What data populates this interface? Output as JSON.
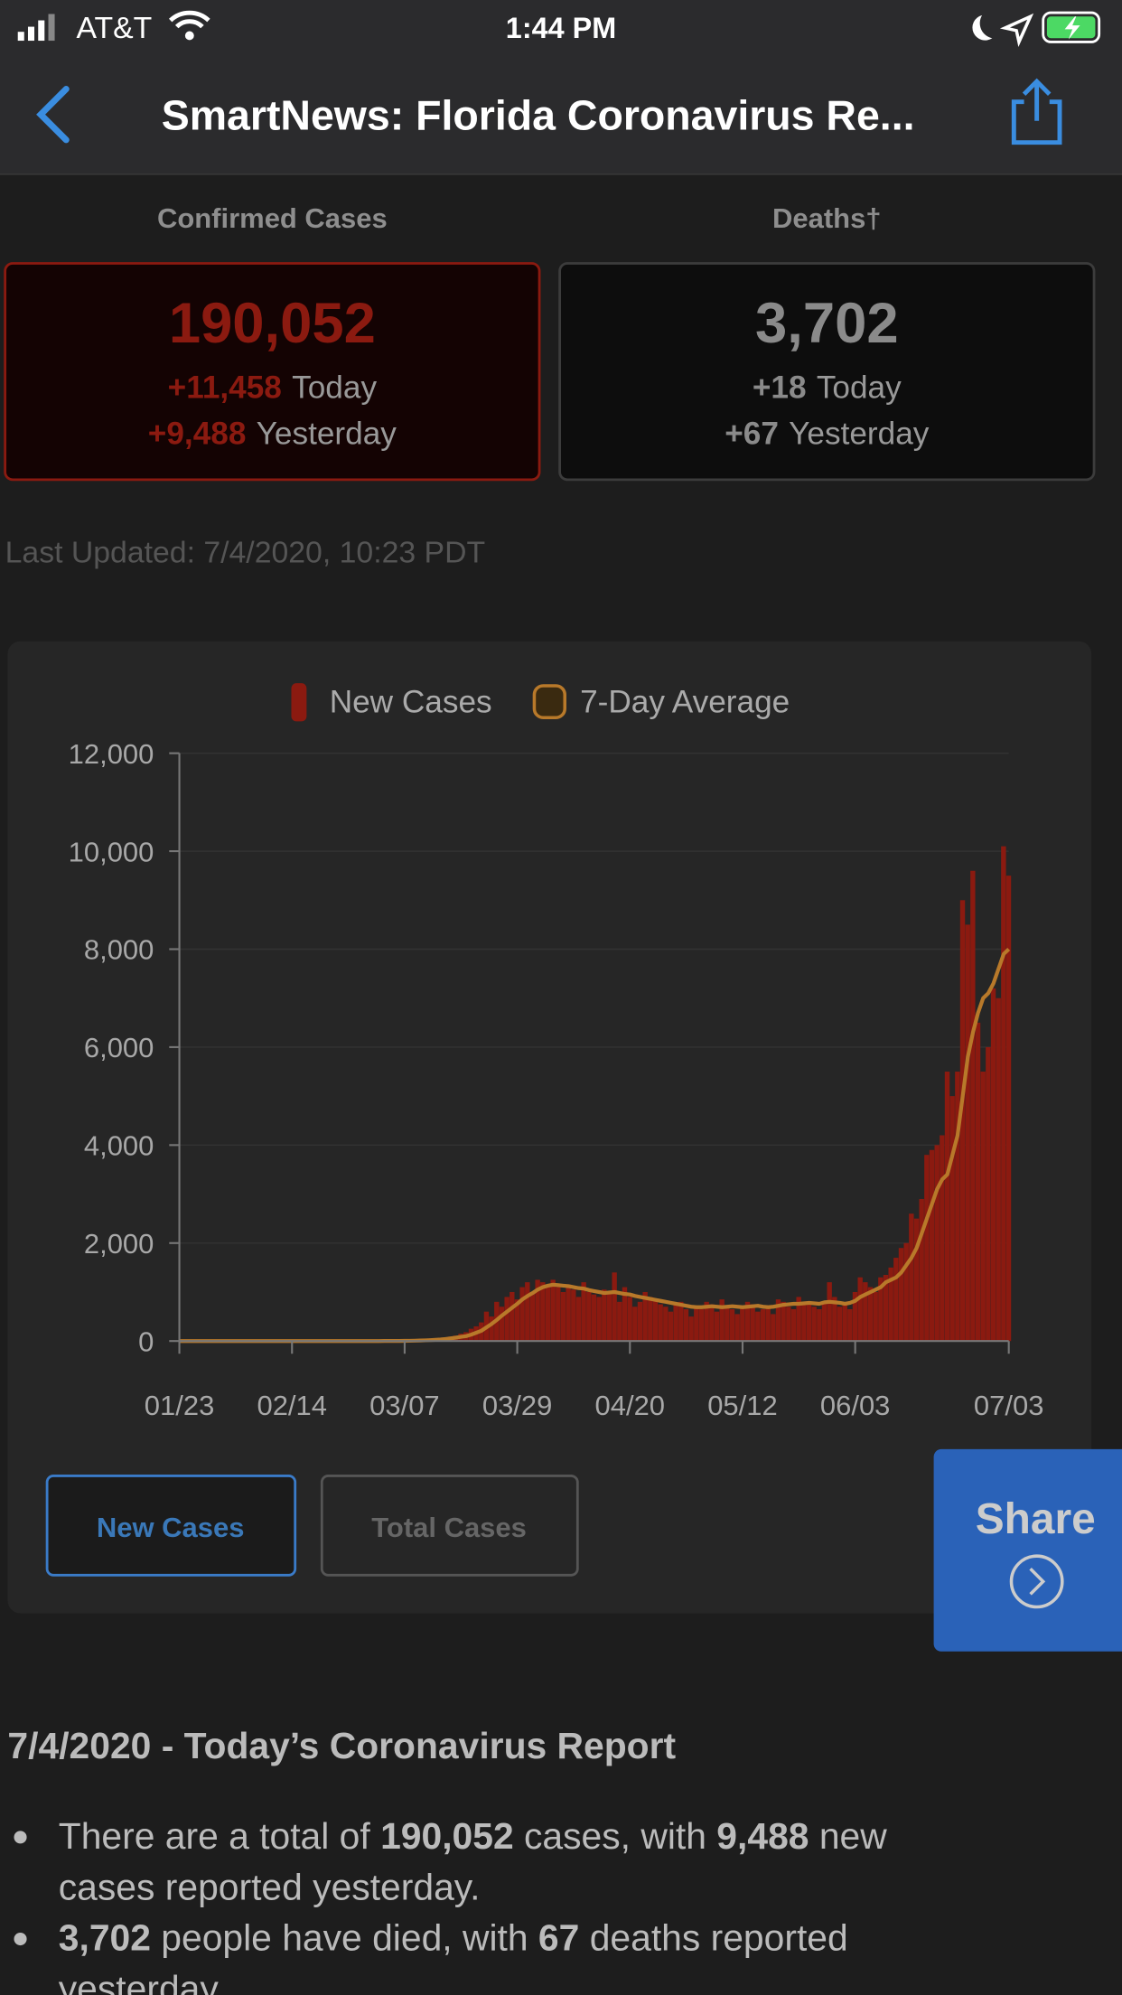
{
  "status_bar": {
    "carrier": "AT&T",
    "time": "1:44 PM"
  },
  "nav": {
    "title": "SmartNews: Florida Coronavirus Re..."
  },
  "stats": {
    "confirmed": {
      "label": "Confirmed Cases",
      "total": "190,052",
      "today_delta": "+11,458",
      "today_label": "Today",
      "yesterday_delta": "+9,488",
      "yesterday_label": "Yesterday"
    },
    "deaths": {
      "label": "Deaths†",
      "total": "3,702",
      "today_delta": "+18",
      "today_label": "Today",
      "yesterday_delta": "+67",
      "yesterday_label": "Yesterday"
    }
  },
  "last_updated": "Last Updated: 7/4/2020, 10:23 PDT",
  "chart_data": {
    "type": "bar",
    "categories": [
      "01/23",
      null,
      null,
      null,
      null,
      null,
      null,
      null,
      null,
      null,
      null,
      null,
      null,
      null,
      null,
      null,
      null,
      null,
      null,
      null,
      null,
      null,
      "02/14",
      null,
      null,
      null,
      null,
      null,
      null,
      null,
      null,
      null,
      null,
      null,
      null,
      null,
      null,
      null,
      null,
      null,
      null,
      null,
      null,
      null,
      "03/07",
      null,
      null,
      null,
      null,
      null,
      null,
      null,
      null,
      null,
      null,
      null,
      null,
      null,
      null,
      null,
      null,
      null,
      null,
      null,
      null,
      null,
      "03/29",
      null,
      null,
      null,
      null,
      null,
      null,
      null,
      null,
      null,
      null,
      null,
      null,
      null,
      null,
      null,
      null,
      null,
      null,
      null,
      null,
      null,
      "04/20",
      null,
      null,
      null,
      null,
      null,
      null,
      null,
      null,
      null,
      null,
      null,
      null,
      null,
      null,
      null,
      null,
      null,
      null,
      null,
      null,
      null,
      "05/12",
      null,
      null,
      null,
      null,
      null,
      null,
      null,
      null,
      null,
      null,
      null,
      null,
      null,
      null,
      null,
      null,
      null,
      null,
      null,
      null,
      null,
      "06/03",
      null,
      null,
      null,
      null,
      null,
      null,
      null,
      null,
      null,
      null,
      null,
      null,
      null,
      null,
      null,
      null,
      null,
      null,
      null,
      null,
      null,
      null,
      null,
      null,
      null,
      null,
      null,
      null,
      null,
      "07/03"
    ],
    "series": [
      {
        "name": "New Cases",
        "color": "#8b1a10",
        "type": "bar",
        "values": [
          0,
          0,
          0,
          0,
          0,
          0,
          0,
          0,
          0,
          0,
          0,
          0,
          0,
          0,
          0,
          0,
          0,
          0,
          0,
          0,
          0,
          0,
          0,
          0,
          0,
          0,
          0,
          0,
          0,
          0,
          0,
          0,
          0,
          0,
          0,
          0,
          0,
          0,
          0,
          0,
          2,
          1,
          3,
          5,
          4,
          8,
          10,
          15,
          25,
          30,
          40,
          50,
          70,
          90,
          110,
          150,
          180,
          250,
          300,
          380,
          600,
          500,
          800,
          700,
          900,
          1000,
          850,
          1100,
          1200,
          1000,
          1250,
          1200,
          1100,
          1250,
          1100,
          1000,
          1150,
          1050,
          900,
          1200,
          1000,
          950,
          900,
          1050,
          1000,
          1400,
          800,
          1100,
          900,
          700,
          800,
          1000,
          900,
          850,
          750,
          700,
          600,
          750,
          800,
          650,
          500,
          700,
          650,
          800,
          750,
          600,
          850,
          700,
          650,
          550,
          700,
          800,
          750,
          600,
          650,
          700,
          550,
          850,
          800,
          700,
          650,
          900,
          750,
          800,
          700,
          650,
          800,
          1200,
          900,
          700,
          750,
          650,
          1000,
          1300,
          1200,
          1100,
          1000,
          1300,
          1350,
          1500,
          1700,
          1900,
          2000,
          2600,
          2500,
          2900,
          3800,
          3900,
          4000,
          4200,
          5500,
          5000,
          5500,
          9000,
          8500,
          9600,
          6500,
          5500,
          6000,
          7200,
          7000,
          10100,
          9500
        ]
      },
      {
        "name": "7-Day Average",
        "color": "#b8792a",
        "type": "line",
        "values": [
          0,
          0,
          0,
          0,
          0,
          0,
          0,
          0,
          0,
          0,
          0,
          0,
          0,
          0,
          0,
          0,
          0,
          0,
          0,
          0,
          0,
          0,
          0,
          0,
          0,
          0,
          0,
          0,
          0,
          0,
          0,
          0,
          0,
          0,
          0,
          0,
          0,
          0,
          0,
          0,
          1,
          1,
          2,
          2,
          3,
          5,
          7,
          10,
          14,
          19,
          25,
          32,
          42,
          54,
          68,
          85,
          100,
          130,
          170,
          210,
          280,
          350,
          430,
          520,
          600,
          680,
          760,
          850,
          920,
          980,
          1050,
          1100,
          1130,
          1150,
          1140,
          1130,
          1120,
          1100,
          1080,
          1070,
          1040,
          1020,
          1000,
          980,
          990,
          1000,
          980,
          960,
          950,
          920,
          900,
          880,
          860,
          840,
          820,
          800,
          780,
          760,
          740,
          720,
          700,
          690,
          690,
          700,
          710,
          700,
          690,
          700,
          710,
          700,
          690,
          700,
          710,
          720,
          700,
          690,
          700,
          720,
          740,
          750,
          760,
          760,
          770,
          780,
          770,
          760,
          790,
          800,
          790,
          780,
          760,
          780,
          820,
          900,
          950,
          1000,
          1050,
          1100,
          1200,
          1250,
          1300,
          1400,
          1550,
          1700,
          1900,
          2200,
          2500,
          2800,
          3100,
          3300,
          3400,
          3800,
          4200,
          5000,
          5800,
          6300,
          6700,
          7000,
          7100,
          7300,
          7600,
          7900,
          8000
        ]
      }
    ],
    "ylim": [
      0,
      12000
    ],
    "yticks": [
      0,
      {
        "value": 2000,
        "label": "2,000"
      },
      {
        "value": 4000,
        "label": "4,000"
      },
      {
        "value": 6000,
        "label": "6,000"
      },
      {
        "value": 8000,
        "label": "8,000"
      },
      {
        "value": 10000,
        "label": "10,000"
      },
      {
        "value": 12000,
        "label": "12,000"
      }
    ],
    "grid": true
  },
  "buttons": [
    "New Cases",
    "Total Cases"
  ],
  "share": "Share",
  "report": {
    "title": "7/4/2020 - Today’s Coronavirus Report",
    "lines": [
      [
        {
          "text": "There are a total of ",
          "bold": false
        },
        {
          "text": "190,052",
          "bold": true
        },
        {
          "text": " cases, with ",
          "bold": false
        },
        {
          "text": "9,488",
          "bold": true
        },
        {
          "text": " new",
          "bold": false
        }
      ],
      [
        {
          "text": "cases reported yesterday.",
          "bold": false
        }
      ],
      [
        {
          "text": "3,702",
          "bold": true
        },
        {
          "text": " people have died, with ",
          "bold": false
        },
        {
          "text": "67",
          "bold": true
        },
        {
          "text": " deaths reported",
          "bold": false
        }
      ],
      [
        {
          "text": "yesterday.",
          "bold": false
        }
      ]
    ]
  }
}
